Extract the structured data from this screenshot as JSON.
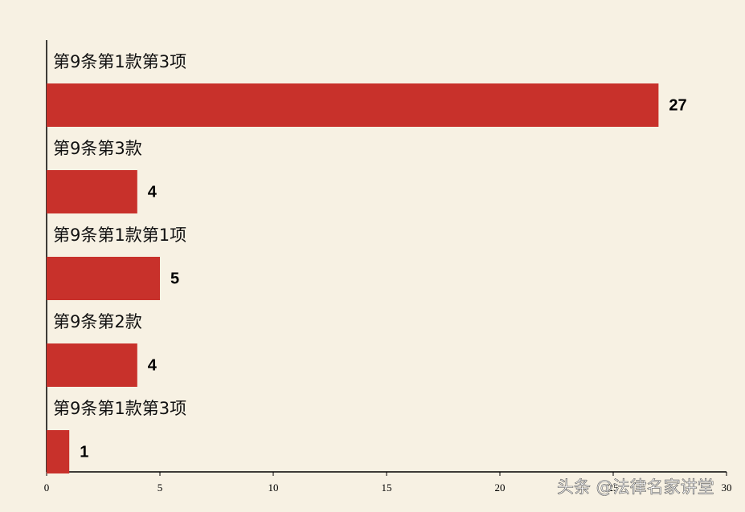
{
  "chart_data": {
    "type": "bar",
    "orientation": "horizontal",
    "categories": [
      "第9条第1款第3项",
      "第9条第3款",
      "第9条第1款第1项",
      "第9条第2款",
      "第9条第1款第3项"
    ],
    "values": [
      27,
      4,
      5,
      4,
      1
    ],
    "color": "#c8312b",
    "xlim": [
      0,
      30
    ],
    "xticks": [
      0,
      5,
      10,
      15,
      20,
      25,
      30
    ],
    "grid": false
  },
  "watermark": "头条 @法律名家讲堂"
}
